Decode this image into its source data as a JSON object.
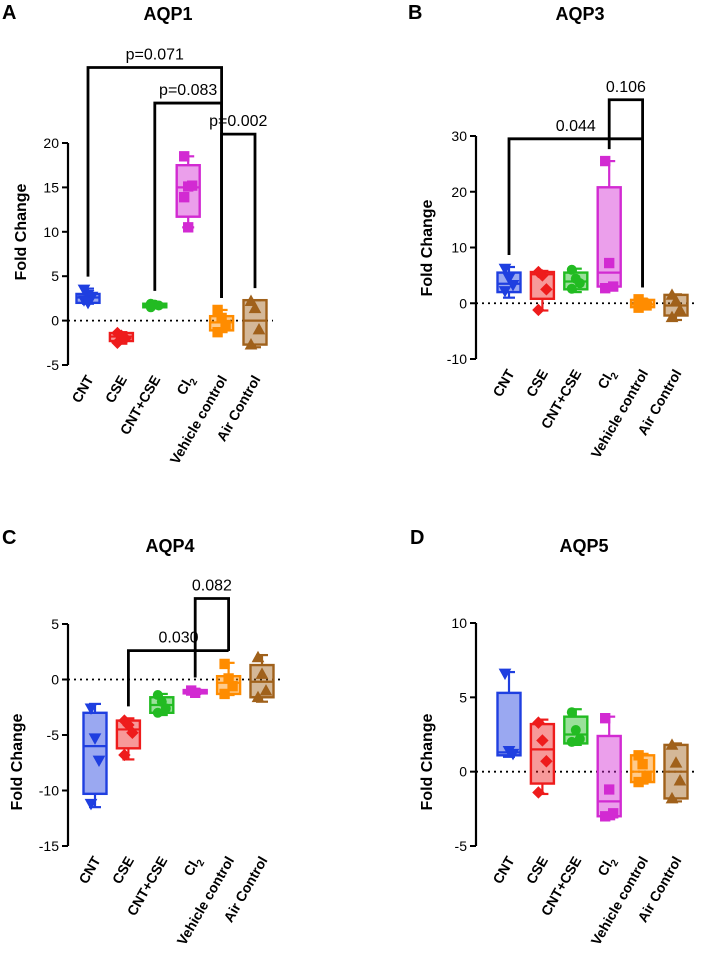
{
  "chart_data": [
    {
      "type": "box",
      "panel": "A",
      "title": "AQP1",
      "ylabel": "Fold Change",
      "xlabel": "",
      "ylim": [
        -5,
        20
      ],
      "yticks": [
        -5,
        0,
        5,
        10,
        15,
        20
      ],
      "reference_line": 0,
      "categories": [
        "CNT",
        "CSE",
        "CNT+CSE",
        "Cl2",
        "Vehicle control",
        "Air Control"
      ],
      "category_labels": [
        {
          "main": "CNT",
          "sub": ""
        },
        {
          "main": "CSE",
          "sub": ""
        },
        {
          "main": "CNT+CSE",
          "sub": ""
        },
        {
          "main": "Cl",
          "sub": "2"
        },
        {
          "main": "Vehicle control",
          "sub": ""
        },
        {
          "main": "Air Control",
          "sub": ""
        }
      ],
      "series": [
        {
          "name": "CNT",
          "color": "#1f3fe0",
          "marker": "triangle-down",
          "box": {
            "min": 1.9,
            "q1": 2.0,
            "median": 2.6,
            "q3": 3.0,
            "max": 3.6
          },
          "points": [
            3.5,
            2.9,
            2.7,
            2.3,
            2.0
          ]
        },
        {
          "name": "CSE",
          "color": "#ee1c1c",
          "marker": "diamond",
          "box": {
            "min": -2.6,
            "q1": -2.3,
            "median": -1.8,
            "q3": -1.4,
            "max": -1.3
          },
          "points": [
            -1.4,
            -1.7,
            -2.0,
            -2.5
          ]
        },
        {
          "name": "CNT+CSE",
          "color": "#22bb22",
          "marker": "circle",
          "box": {
            "min": 1.4,
            "q1": 1.5,
            "median": 1.7,
            "q3": 1.9,
            "max": 2.0
          },
          "points": [
            1.9,
            1.8,
            1.7,
            1.5
          ]
        },
        {
          "name": "Cl2",
          "color": "#d22ad2",
          "marker": "square",
          "box": {
            "min": 10.5,
            "q1": 11.7,
            "median": 15.0,
            "q3": 17.5,
            "max": 18.5
          },
          "points": [
            18.5,
            15.1,
            15.2,
            13.9,
            10.5
          ]
        },
        {
          "name": "Vehicle control",
          "color": "#ff8c00",
          "marker": "square",
          "box": {
            "min": -1.3,
            "q1": -1.1,
            "median": -0.2,
            "q3": 0.5,
            "max": 1.2
          },
          "points": [
            1.2,
            0.3,
            -0.5,
            -1.3
          ]
        },
        {
          "name": "Air Control",
          "color": "#a0611b",
          "marker": "triangle",
          "box": {
            "min": -3.0,
            "q1": -2.7,
            "median": 0.0,
            "q3": 2.3,
            "max": 2.3
          },
          "points": [
            2.2,
            1.4,
            -1.0,
            -2.7
          ]
        }
      ],
      "annotations": [
        {
          "text": "p=0.071",
          "from": "CNT",
          "to": "Vehicle control",
          "level": 28.5
        },
        {
          "text": "p=0.083",
          "from": "CNT+CSE",
          "to": "Vehicle control",
          "level": 24.5
        },
        {
          "text": "p=0.002",
          "from": "Vehicle control",
          "to": "Air Control",
          "level": 21.0
        }
      ]
    },
    {
      "type": "box",
      "panel": "B",
      "title": "AQP3",
      "ylabel": "Fold Change",
      "xlabel": "",
      "ylim": [
        -10,
        30
      ],
      "yticks": [
        -10,
        0,
        10,
        20,
        30
      ],
      "reference_line": 0,
      "categories": [
        "CNT",
        "CSE",
        "CNT+CSE",
        "Cl2",
        "Vehicle control",
        "Air Control"
      ],
      "category_labels": [
        {
          "main": "CNT",
          "sub": ""
        },
        {
          "main": "CSE",
          "sub": ""
        },
        {
          "main": "CNT+CSE",
          "sub": ""
        },
        {
          "main": "Cl",
          "sub": "2"
        },
        {
          "main": "Vehicle control",
          "sub": ""
        },
        {
          "main": "Air Control",
          "sub": ""
        }
      ],
      "series": [
        {
          "name": "CNT",
          "color": "#1f3fe0",
          "marker": "triangle-down",
          "box": {
            "min": 1.0,
            "q1": 2.0,
            "median": 3.5,
            "q3": 5.5,
            "max": 6.5
          },
          "points": [
            6.2,
            4.5,
            3.3,
            2.2
          ]
        },
        {
          "name": "CSE",
          "color": "#ee1c1c",
          "marker": "diamond",
          "box": {
            "min": -1.3,
            "q1": 0.8,
            "median": 5.2,
            "q3": 5.6,
            "max": 5.8
          },
          "points": [
            5.6,
            5.0,
            2.5,
            -1.2
          ]
        },
        {
          "name": "CNT+CSE",
          "color": "#22bb22",
          "marker": "circle",
          "box": {
            "min": 2.0,
            "q1": 2.5,
            "median": 3.9,
            "q3": 5.5,
            "max": 6.2
          },
          "points": [
            6.0,
            4.4,
            3.6,
            2.6
          ]
        },
        {
          "name": "Cl2",
          "color": "#d22ad2",
          "marker": "square",
          "box": {
            "min": 2.7,
            "q1": 3.0,
            "median": 5.5,
            "q3": 20.8,
            "max": 25.5
          },
          "points": [
            25.5,
            7.2,
            3.0,
            2.7
          ]
        },
        {
          "name": "Vehicle control",
          "color": "#ff8c00",
          "marker": "square",
          "box": {
            "min": -0.8,
            "q1": -0.7,
            "median": -0.2,
            "q3": 0.6,
            "max": 0.7
          },
          "points": [
            0.7,
            0.1,
            -0.4,
            -0.8
          ]
        },
        {
          "name": "Air Control",
          "color": "#a0611b",
          "marker": "triangle",
          "box": {
            "min": -3.0,
            "q1": -2.2,
            "median": -0.4,
            "q3": 1.5,
            "max": 1.6
          },
          "points": [
            1.5,
            0.4,
            -1.2,
            -2.5
          ]
        }
      ],
      "annotations": [
        {
          "text": "0.044",
          "from": "CNT",
          "to": "Vehicle control",
          "level": 29.5
        },
        {
          "text": "0.106",
          "from": "Cl2",
          "to": "Vehicle control",
          "level": 36.5
        }
      ]
    },
    {
      "type": "box",
      "panel": "C",
      "title": "AQP4",
      "ylabel": "Fold Change",
      "xlabel": "",
      "ylim": [
        -15,
        5
      ],
      "yticks": [
        -15,
        -10,
        -5,
        0,
        5
      ],
      "reference_line": 0,
      "categories": [
        "CNT",
        "CSE",
        "CNT+CSE",
        "Cl2",
        "Vehicle control",
        "Air Control"
      ],
      "category_labels": [
        {
          "main": "CNT",
          "sub": ""
        },
        {
          "main": "CSE",
          "sub": ""
        },
        {
          "main": "CNT+CSE",
          "sub": ""
        },
        {
          "main": "Cl",
          "sub": "2"
        },
        {
          "main": "Vehicle control",
          "sub": ""
        },
        {
          "main": "Air Control",
          "sub": ""
        }
      ],
      "series": [
        {
          "name": "CNT",
          "color": "#1f3fe0",
          "marker": "triangle-down",
          "box": {
            "min": -11.5,
            "q1": -10.3,
            "median": -6.0,
            "q3": -3.0,
            "max": -2.2
          },
          "points": [
            -2.6,
            -5.3,
            -7.3,
            -11.2
          ]
        },
        {
          "name": "CSE",
          "color": "#ee1c1c",
          "marker": "diamond",
          "box": {
            "min": -7.2,
            "q1": -6.2,
            "median": -4.5,
            "q3": -3.7,
            "max": -3.5
          },
          "points": [
            -3.7,
            -4.1,
            -4.8,
            -6.8
          ]
        },
        {
          "name": "CNT+CSE",
          "color": "#22bb22",
          "marker": "circle",
          "box": {
            "min": -3.2,
            "q1": -3.0,
            "median": -2.3,
            "q3": -1.6,
            "max": -1.3
          },
          "points": [
            -1.4,
            -2.0,
            -2.6,
            -3.0
          ]
        },
        {
          "name": "Cl2",
          "color": "#d22ad2",
          "marker": "square",
          "box": {
            "min": -1.3,
            "q1": -1.25,
            "median": -1.1,
            "q3": -0.95,
            "max": -0.9
          },
          "points": [
            -1.0,
            -1.2
          ]
        },
        {
          "name": "Vehicle control",
          "color": "#ff8c00",
          "marker": "square",
          "box": {
            "min": -1.4,
            "q1": -1.3,
            "median": -0.3,
            "q3": 0.3,
            "max": 1.5
          },
          "points": [
            1.4,
            0.1,
            -0.6,
            -1.3
          ]
        },
        {
          "name": "Air Control",
          "color": "#a0611b",
          "marker": "triangle",
          "box": {
            "min": -2.0,
            "q1": -1.6,
            "median": -0.2,
            "q3": 1.3,
            "max": 2.2
          },
          "points": [
            2.0,
            0.5,
            -1.0,
            -1.6
          ]
        }
      ],
      "annotations": [
        {
          "text": "0.030",
          "from": "CSE",
          "to": "Vehicle control",
          "level": 2.6
        },
        {
          "text": "0.082",
          "from": "Cl2",
          "to": "Vehicle control",
          "level": 7.3
        }
      ]
    },
    {
      "type": "box",
      "panel": "D",
      "title": "AQP5",
      "ylabel": "Fold Change",
      "xlabel": "",
      "ylim": [
        -5,
        10
      ],
      "yticks": [
        -5,
        0,
        5,
        10
      ],
      "reference_line": 0,
      "categories": [
        "CNT",
        "CSE",
        "CNT+CSE",
        "Cl2",
        "Vehicle control",
        "Air Control"
      ],
      "category_labels": [
        {
          "main": "CNT",
          "sub": ""
        },
        {
          "main": "CSE",
          "sub": ""
        },
        {
          "main": "CNT+CSE",
          "sub": ""
        },
        {
          "main": "Cl",
          "sub": "2"
        },
        {
          "main": "Vehicle control",
          "sub": ""
        },
        {
          "main": "Air Control",
          "sub": ""
        }
      ],
      "series": [
        {
          "name": "CNT",
          "color": "#1f3fe0",
          "marker": "triangle-down",
          "box": {
            "min": 1.0,
            "q1": 1.1,
            "median": 1.3,
            "q3": 5.3,
            "max": 6.7
          },
          "points": [
            6.6,
            1.4,
            1.2
          ]
        },
        {
          "name": "CSE",
          "color": "#ee1c1c",
          "marker": "diamond",
          "box": {
            "min": -1.5,
            "q1": -0.8,
            "median": 1.5,
            "q3": 3.2,
            "max": 3.5
          },
          "points": [
            3.3,
            2.1,
            0.7,
            -1.4
          ]
        },
        {
          "name": "CNT+CSE",
          "color": "#22bb22",
          "marker": "circle",
          "box": {
            "min": 1.8,
            "q1": 1.9,
            "median": 2.5,
            "q3": 3.7,
            "max": 4.2
          },
          "points": [
            4.0,
            2.8,
            2.2,
            2.0
          ]
        },
        {
          "name": "Cl2",
          "color": "#d22ad2",
          "marker": "square",
          "box": {
            "min": -3.2,
            "q1": -3.0,
            "median": -2.0,
            "q3": 2.4,
            "max": 3.7
          },
          "points": [
            3.6,
            -1.2,
            -2.8,
            -3.0
          ]
        },
        {
          "name": "Vehicle control",
          "color": "#ff8c00",
          "marker": "square",
          "box": {
            "min": -0.8,
            "q1": -0.7,
            "median": 0.0,
            "q3": 1.1,
            "max": 1.2
          },
          "points": [
            1.1,
            0.5,
            -0.4,
            -0.7
          ]
        },
        {
          "name": "Air Control",
          "color": "#a0611b",
          "marker": "triangle",
          "box": {
            "min": -2.0,
            "q1": -1.8,
            "median": 0.0,
            "q3": 1.8,
            "max": 1.9
          },
          "points": [
            1.8,
            0.6,
            -0.6,
            -1.8
          ]
        }
      ],
      "annotations": []
    }
  ]
}
